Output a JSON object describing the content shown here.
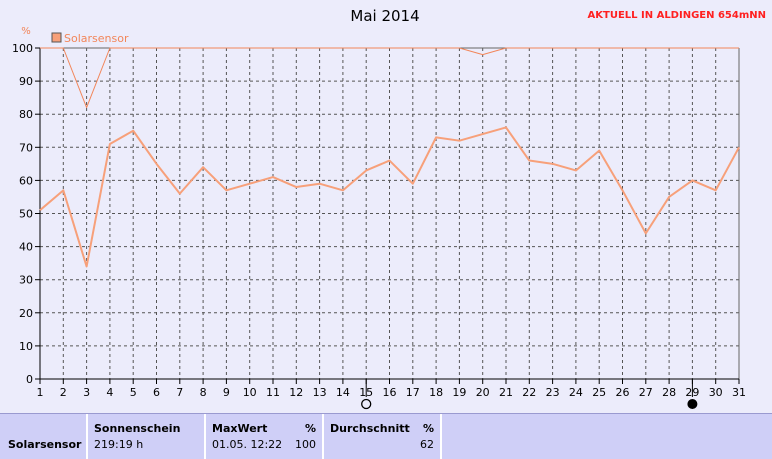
{
  "header": {
    "notice": "AKTUELL IN ALDINGEN 654mNN"
  },
  "chart_data": {
    "type": "line",
    "title": "Mai 2014",
    "ylabel": "%",
    "ylim": [
      0,
      100
    ],
    "yticks": [
      0,
      10,
      20,
      30,
      40,
      50,
      60,
      70,
      80,
      90,
      100
    ],
    "x": [
      1,
      2,
      3,
      4,
      5,
      6,
      7,
      8,
      9,
      10,
      11,
      12,
      13,
      14,
      15,
      16,
      17,
      18,
      19,
      20,
      21,
      22,
      23,
      24,
      25,
      26,
      27,
      28,
      29,
      30,
      31
    ],
    "legend": [
      "Solarsensor"
    ],
    "grid": true,
    "series": [
      {
        "name": "Solarsensor",
        "color": "#f7a07a",
        "values": [
          51,
          57,
          34,
          71,
          75,
          65,
          56,
          64,
          57,
          59,
          61,
          58,
          59,
          57,
          63,
          66,
          59,
          73,
          72,
          74,
          76,
          66,
          65,
          63,
          69,
          57,
          44,
          55,
          60,
          57,
          70
        ]
      },
      {
        "color": "#f2865a",
        "values": [
          100,
          100,
          82,
          100,
          100,
          100,
          100,
          100,
          100,
          100,
          100,
          100,
          100,
          100,
          100,
          100,
          100,
          100,
          100,
          98,
          100,
          100,
          100,
          100,
          100,
          100,
          100,
          100,
          100,
          100,
          100
        ]
      }
    ],
    "moon_markers": [
      {
        "day": 15,
        "phase": "full-moon-icon"
      },
      {
        "day": 29,
        "phase": "new-moon-icon"
      }
    ]
  },
  "stats": {
    "row_label": "Solarsensor",
    "sonnenschein_label": "Sonnenschein",
    "sonnenschein_value": "219:19 h",
    "maxwert_label": "MaxWert",
    "maxwert_unit": "%",
    "maxwert_date": "01.05.  12:22",
    "maxwert_value": "100",
    "durchschnitt_label": "Durchschnitt",
    "durchschnitt_unit": "%",
    "durchschnitt_value": "62"
  }
}
